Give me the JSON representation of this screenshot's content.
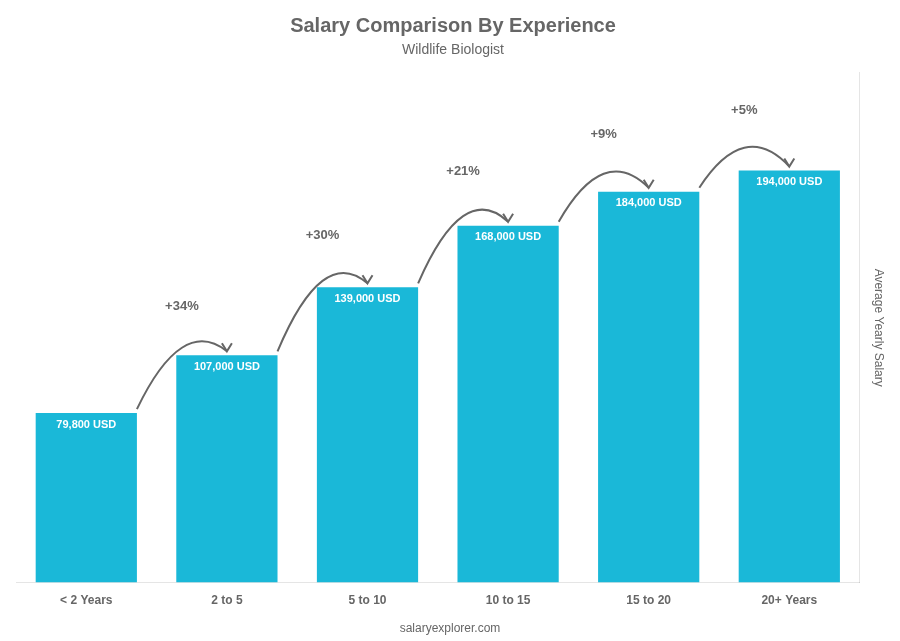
{
  "chart_data": {
    "type": "bar",
    "title": "Salary Comparison By Experience",
    "subtitle": "Wildlife Biologist",
    "categories": [
      "< 2 Years",
      "2 to 5",
      "5 to 10",
      "10 to 15",
      "15 to 20",
      "20+ Years"
    ],
    "values": [
      79800,
      107000,
      139000,
      168000,
      184000,
      194000
    ],
    "value_labels": [
      "79,800 USD",
      "107,000 USD",
      "139,000 USD",
      "168,000 USD",
      "184,000 USD",
      "194,000 USD"
    ],
    "data_labels": true,
    "annotations": [
      "+34%",
      "+30%",
      "+21%",
      "+9%",
      "+5%"
    ],
    "ylabel": "Average Yearly Salary",
    "footer": "salaryexplorer.com",
    "color": "#1ab8d8",
    "ylim": [
      0,
      240000
    ],
    "tick_labels": "x",
    "grid": false
  }
}
